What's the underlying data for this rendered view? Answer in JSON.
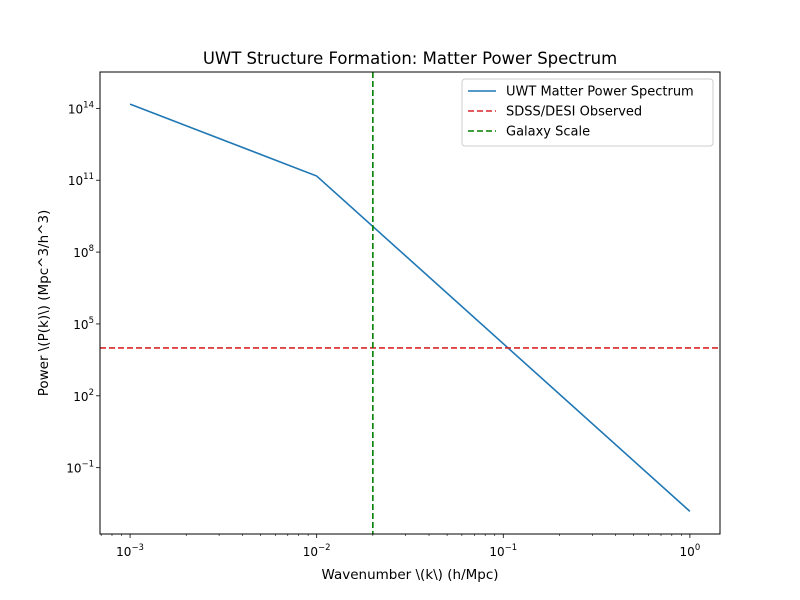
{
  "chart_data": {
    "type": "line",
    "title": "UWT Structure Formation: Matter Power Spectrum",
    "xlabel": "Wavenumber \\(k\\) (h/Mpc)",
    "ylabel": "Power \\(P(k)\\) (Mpc^3/h^3)",
    "xscale": "log",
    "yscale": "log",
    "xlim": [
      0.00069,
      1.45
    ],
    "ylim": [
      0.00017,
      3300000000000000.0
    ],
    "grid": false,
    "legend_position": "top-right",
    "x_ticks": [
      {
        "value": 0.001,
        "base": "10",
        "exp": "−3"
      },
      {
        "value": 0.01,
        "base": "10",
        "exp": "−2"
      },
      {
        "value": 0.1,
        "base": "10",
        "exp": "−1"
      },
      {
        "value": 1,
        "base": "10",
        "exp": "0"
      }
    ],
    "y_ticks": [
      {
        "value": 0.1,
        "base": "10",
        "exp": "−1"
      },
      {
        "value": 100,
        "base": "10",
        "exp": "2"
      },
      {
        "value": 100000,
        "base": "10",
        "exp": "5"
      },
      {
        "value": 100000000,
        "base": "10",
        "exp": "8"
      },
      {
        "value": 100000000000,
        "base": "10",
        "exp": "11"
      },
      {
        "value": 100000000000000,
        "base": "10",
        "exp": "14"
      }
    ],
    "series": [
      {
        "name": "UWT Matter Power Spectrum",
        "color": "#1f77b4",
        "style": "solid",
        "kind": "line",
        "x": [
          0.001,
          0.01,
          1
        ],
        "y": [
          150000000000000.0,
          150000000000.0,
          0.0015
        ]
      },
      {
        "name": "SDSS/DESI Observed",
        "color": "#d62728",
        "style": "dashed",
        "kind": "hline",
        "value": 10000
      },
      {
        "name": "Galaxy Scale",
        "color": "#008000",
        "style": "dashed",
        "kind": "vline",
        "value": 0.02
      }
    ]
  }
}
